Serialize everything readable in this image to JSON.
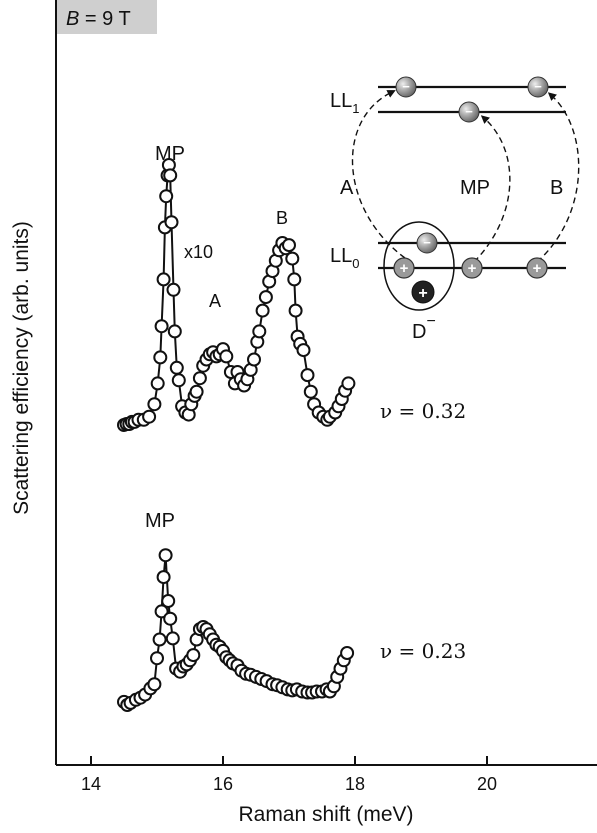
{
  "chart_data": {
    "type": "scatter",
    "title": "",
    "field_label_italic": "B",
    "field_label_rest": " = 9 T",
    "xlabel": "Raman shift (meV)",
    "ylabel": "Scattering efficiency (arb. units)",
    "xlim": [
      13.65,
      22.75
    ],
    "xticks": [
      14,
      16,
      18,
      20
    ],
    "xtick_labels": [
      "14",
      "16",
      "18",
      "20"
    ],
    "y_ticks": false,
    "grid": false,
    "series": [
      {
        "filling_label": "ν = 0.32",
        "peak_labels": {
          "mp": "MP",
          "a": "A",
          "b": "B",
          "scale": "x10"
        },
        "points": [
          [
            14.5,
            0.0
          ],
          [
            14.54,
            0.1
          ],
          [
            14.58,
            0.1
          ],
          [
            14.62,
            0.3
          ],
          [
            14.66,
            0.3
          ],
          [
            14.72,
            0.5
          ],
          [
            14.8,
            0.5
          ],
          [
            14.88,
            0.8
          ],
          [
            14.96,
            2.0
          ],
          [
            15.01,
            4.0
          ],
          [
            15.05,
            6.5
          ],
          [
            15.07,
            9.5
          ],
          [
            15.1,
            14.0
          ],
          [
            15.12,
            19.0
          ],
          [
            15.14,
            22.0
          ],
          [
            15.16,
            24.0
          ],
          [
            15.18,
            25.0
          ],
          [
            15.2,
            24.0
          ],
          [
            15.22,
            19.5
          ],
          [
            15.25,
            13.0
          ],
          [
            15.27,
            9.0
          ],
          [
            15.3,
            5.5
          ],
          [
            15.33,
            4.3
          ],
          [
            15.38,
            1.8
          ],
          [
            15.43,
            1.2
          ],
          [
            15.48,
            1.0
          ],
          [
            15.52,
            2.0
          ],
          [
            15.57,
            2.8
          ],
          [
            15.6,
            3.2
          ],
          [
            15.65,
            4.5
          ],
          [
            15.7,
            5.7
          ],
          [
            15.75,
            6.3
          ],
          [
            15.8,
            6.8
          ],
          [
            15.85,
            7.0
          ],
          [
            15.9,
            6.6
          ],
          [
            15.95,
            6.8
          ],
          [
            16.0,
            7.3
          ],
          [
            16.05,
            6.6
          ],
          [
            16.12,
            5.1
          ],
          [
            16.18,
            4.0
          ],
          [
            16.22,
            5.1
          ],
          [
            16.27,
            4.4
          ],
          [
            16.32,
            3.8
          ],
          [
            16.37,
            4.4
          ],
          [
            16.42,
            5.3
          ],
          [
            16.47,
            6.3
          ],
          [
            16.52,
            8.0
          ],
          [
            16.55,
            9.0
          ],
          [
            16.6,
            11.0
          ],
          [
            16.65,
            12.3
          ],
          [
            16.7,
            13.8
          ],
          [
            16.75,
            14.8
          ],
          [
            16.8,
            15.8
          ],
          [
            16.85,
            16.8
          ],
          [
            16.9,
            17.5
          ],
          [
            16.95,
            17.0
          ],
          [
            17.0,
            17.3
          ],
          [
            17.05,
            16.0
          ],
          [
            17.08,
            14.0
          ],
          [
            17.1,
            11.0
          ],
          [
            17.13,
            8.5
          ],
          [
            17.17,
            7.8
          ],
          [
            17.22,
            7.2
          ],
          [
            17.28,
            4.8
          ],
          [
            17.33,
            3.2
          ],
          [
            17.38,
            2.0
          ],
          [
            17.45,
            1.2
          ],
          [
            17.52,
            0.8
          ],
          [
            17.58,
            0.5
          ],
          [
            17.62,
            0.8
          ],
          [
            17.7,
            1.2
          ],
          [
            17.75,
            1.8
          ],
          [
            17.8,
            2.5
          ],
          [
            17.85,
            3.3
          ],
          [
            17.9,
            4.0
          ]
        ]
      },
      {
        "filling_label": "ν = 0.23",
        "peak_labels": {
          "mp": "MP"
        },
        "points": [
          [
            14.5,
            0.3
          ],
          [
            14.55,
            0.0
          ],
          [
            14.6,
            0.2
          ],
          [
            14.68,
            0.5
          ],
          [
            14.75,
            0.7
          ],
          [
            14.82,
            1.0
          ],
          [
            14.9,
            1.6
          ],
          [
            14.96,
            2.0
          ],
          [
            15.0,
            4.5
          ],
          [
            15.04,
            6.3
          ],
          [
            15.07,
            9.0
          ],
          [
            15.1,
            12.3
          ],
          [
            15.13,
            14.4
          ],
          [
            15.17,
            10.0
          ],
          [
            15.2,
            8.3
          ],
          [
            15.24,
            6.4
          ],
          [
            15.29,
            3.5
          ],
          [
            15.35,
            3.2
          ],
          [
            15.4,
            3.7
          ],
          [
            15.45,
            3.9
          ],
          [
            15.5,
            4.3
          ],
          [
            15.55,
            4.8
          ],
          [
            15.6,
            6.3
          ],
          [
            15.65,
            7.3
          ],
          [
            15.7,
            7.5
          ],
          [
            15.75,
            7.3
          ],
          [
            15.8,
            6.8
          ],
          [
            15.85,
            6.3
          ],
          [
            15.9,
            5.8
          ],
          [
            15.95,
            5.6
          ],
          [
            16.0,
            5.2
          ],
          [
            16.05,
            4.6
          ],
          [
            16.1,
            4.3
          ],
          [
            16.15,
            4.0
          ],
          [
            16.22,
            3.8
          ],
          [
            16.28,
            3.3
          ],
          [
            16.35,
            3.0
          ],
          [
            16.42,
            2.9
          ],
          [
            16.5,
            2.7
          ],
          [
            16.58,
            2.5
          ],
          [
            16.66,
            2.3
          ],
          [
            16.75,
            2.0
          ],
          [
            16.82,
            1.9
          ],
          [
            16.9,
            1.7
          ],
          [
            16.98,
            1.5
          ],
          [
            17.05,
            1.4
          ],
          [
            17.12,
            1.5
          ],
          [
            17.2,
            1.3
          ],
          [
            17.28,
            1.2
          ],
          [
            17.35,
            1.2
          ],
          [
            17.42,
            1.3
          ],
          [
            17.5,
            1.3
          ],
          [
            17.57,
            1.5
          ],
          [
            17.62,
            1.3
          ],
          [
            17.68,
            1.8
          ],
          [
            17.73,
            2.7
          ],
          [
            17.78,
            3.5
          ],
          [
            17.83,
            4.3
          ],
          [
            17.88,
            5.0
          ]
        ]
      }
    ],
    "inset": {
      "ll1": "LL",
      "ll1_sub": "1",
      "ll0": "LL",
      "ll0_sub": "0",
      "transition_a": "A",
      "transition_mp": "MP",
      "transition_b": "B",
      "defect": "D",
      "defect_sup": "−",
      "electron_sign": "−",
      "hole_sign": "+"
    }
  }
}
